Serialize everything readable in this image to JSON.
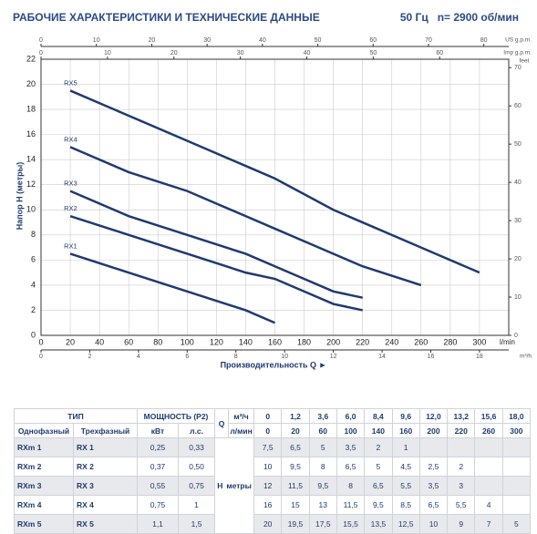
{
  "header": {
    "title": "РАБОЧИЕ ХАРАКТЕРИСТИКИ И ТЕХНИЧЕСКИЕ ДАННЫЕ",
    "spec": "50 Гц   n= 2900 об/мин"
  },
  "chart_data": {
    "type": "line",
    "ylabel": "Напор H (метры)",
    "xlabel": "Производительность Q ►",
    "x_unit": "l/min",
    "xlim": [
      0,
      320
    ],
    "xticks": [
      0,
      20,
      40,
      60,
      80,
      100,
      120,
      140,
      160,
      180,
      200,
      220,
      240,
      260,
      280,
      300
    ],
    "ylim": [
      0,
      22
    ],
    "yticks": [
      0,
      2,
      4,
      6,
      8,
      10,
      12,
      14,
      16,
      18,
      20,
      22
    ],
    "grid": true,
    "us_gpm": {
      "label": "US g.p.m.",
      "lim": [
        0,
        84.5
      ],
      "ticks": [
        0,
        10,
        20,
        30,
        40,
        50,
        60,
        70,
        80
      ]
    },
    "imp_gpm": {
      "label": "Imp g.p.m.",
      "lim": [
        0,
        70.4
      ],
      "ticks": [
        0,
        10,
        20,
        30,
        40,
        50,
        60
      ]
    },
    "feet": {
      "label": "feet",
      "lim": [
        0,
        72.2
      ],
      "ticks": [
        0,
        10,
        20,
        30,
        40,
        50,
        60,
        70
      ]
    },
    "m3h": {
      "label": "m³/h",
      "lim": [
        0,
        19.2
      ],
      "ticks": [
        0,
        2,
        4,
        6,
        8,
        10,
        12,
        14,
        16,
        18
      ]
    },
    "series": [
      {
        "name": "RX5",
        "color": "#1f3a70",
        "x": [
          20,
          60,
          100,
          140,
          160,
          200,
          220,
          260,
          300
        ],
        "values": [
          19.5,
          17.5,
          15.5,
          13.5,
          12.5,
          10,
          9,
          7,
          5
        ]
      },
      {
        "name": "RX4",
        "color": "#1f3a70",
        "x": [
          20,
          60,
          100,
          140,
          160,
          200,
          220,
          260
        ],
        "values": [
          15,
          13,
          11.5,
          9.5,
          8.5,
          6.5,
          5.5,
          4
        ]
      },
      {
        "name": "RX3",
        "color": "#1f3a70",
        "x": [
          20,
          60,
          100,
          140,
          160,
          200,
          220
        ],
        "values": [
          11.5,
          9.5,
          8,
          6.5,
          5.5,
          3.5,
          3
        ]
      },
      {
        "name": "RX2",
        "color": "#1f3a70",
        "x": [
          20,
          60,
          100,
          140,
          160,
          200,
          220
        ],
        "values": [
          9.5,
          8,
          6.5,
          5,
          4.5,
          2.5,
          2
        ]
      },
      {
        "name": "RX1",
        "color": "#1f3a70",
        "x": [
          20,
          60,
          100,
          140,
          160
        ],
        "values": [
          6.5,
          5,
          3.5,
          2,
          1
        ]
      }
    ]
  },
  "table": {
    "head1": [
      "ТИП",
      "МОЩНОСТЬ (P2)",
      "Q",
      "м³/ч",
      "0",
      "1,2",
      "3,6",
      "6,0",
      "8,4",
      "9,6",
      "12,0",
      "13,2",
      "15,6",
      "18,0"
    ],
    "head2": [
      "Однофазный",
      "Трехфазный",
      "кВт",
      "л.с.",
      "л/мин",
      "0",
      "20",
      "60",
      "100",
      "140",
      "160",
      "200",
      "220",
      "260",
      "300"
    ],
    "h_label": "H",
    "h_unit": "метры",
    "rows": [
      {
        "single": "RXm 1",
        "three": "RX 1",
        "kw": "0,25",
        "hp": "0,33",
        "h": [
          "7,5",
          "6,5",
          "5",
          "3,5",
          "2",
          "1"
        ]
      },
      {
        "single": "RXm 2",
        "three": "RX 2",
        "kw": "0,37",
        "hp": "0,50",
        "h": [
          "10",
          "9,5",
          "8",
          "6,5",
          "5",
          "4,5",
          "2,5",
          "2"
        ]
      },
      {
        "single": "RXm 3",
        "three": "RX 3",
        "kw": "0,55",
        "hp": "0,75",
        "h": [
          "12",
          "11,5",
          "9,5",
          "8",
          "6,5",
          "5,5",
          "3,5",
          "3"
        ]
      },
      {
        "single": "RXm 4",
        "three": "RX 4",
        "kw": "0,75",
        "hp": "1",
        "h": [
          "16",
          "15",
          "13",
          "11,5",
          "9,5",
          "8,5",
          "6,5",
          "5,5",
          "4"
        ]
      },
      {
        "single": "RXm 5",
        "three": "RX 5",
        "kw": "1,1",
        "hp": "1,5",
        "h": [
          "20",
          "19,5",
          "17,5",
          "15,5",
          "13,5",
          "12,5",
          "10",
          "9",
          "7",
          "5"
        ]
      }
    ]
  }
}
